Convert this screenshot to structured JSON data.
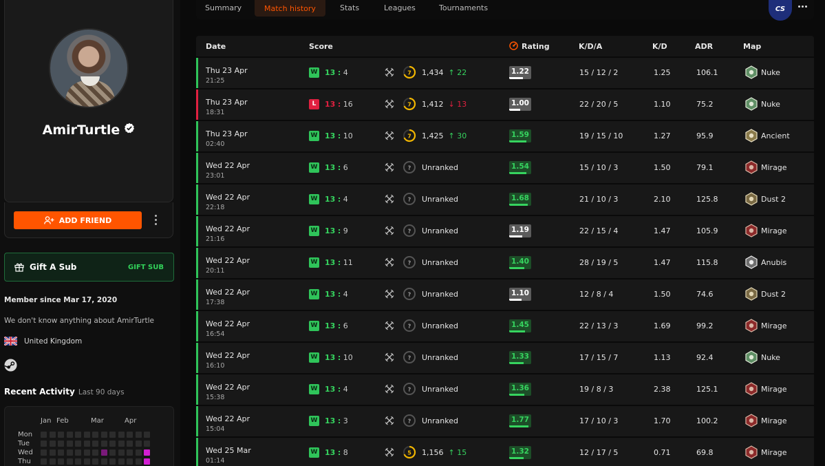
{
  "profile": {
    "username": "AmirTurtle",
    "add_friend_label": "ADD FRIEND",
    "gift_title": "Gift A Sub",
    "gift_action": "GIFT SUB",
    "member_since": "Member since Mar 17, 2020",
    "about": "We don't know anything about AmirTurtle",
    "country": "United Kingdom",
    "recent_activity_title": "Recent Activity",
    "recent_activity_range": "Last 90 days",
    "activity_months": [
      "Jan",
      "Feb",
      "Mar",
      "Apr"
    ],
    "activity_days": [
      "Mon",
      "Tue",
      "Wed",
      "Thu"
    ]
  },
  "tabs": [
    "Summary",
    "Match history",
    "Stats",
    "Leagues",
    "Tournaments"
  ],
  "active_tab": "Match history",
  "logo_text": "CS",
  "table": {
    "headers": [
      "Date",
      "Score",
      "Rating",
      "K/D/A",
      "K/D",
      "ADR",
      "Map"
    ],
    "rows": [
      {
        "date": "Thu 23 Apr",
        "time": "21:25",
        "result": "W",
        "own": "13",
        "opp": "4",
        "level": "7",
        "elo": "1,434",
        "delta": "22",
        "dir": "up",
        "rating": "1.22",
        "kda": "15 / 12 / 2",
        "kd": "1.25",
        "adr": "106.1",
        "map": "Nuke"
      },
      {
        "date": "Thu 23 Apr",
        "time": "18:31",
        "result": "L",
        "own": "13",
        "opp": "16",
        "level": "7",
        "elo": "1,412",
        "delta": "13",
        "dir": "down",
        "rating": "1.00",
        "kda": "22 / 20 / 5",
        "kd": "1.10",
        "adr": "75.2",
        "map": "Nuke"
      },
      {
        "date": "Thu 23 Apr",
        "time": "02:40",
        "result": "W",
        "own": "13",
        "opp": "10",
        "level": "7",
        "elo": "1,425",
        "delta": "30",
        "dir": "up",
        "rating": "1.59",
        "kda": "19 / 15 / 10",
        "kd": "1.27",
        "adr": "95.9",
        "map": "Ancient"
      },
      {
        "date": "Wed 22 Apr",
        "time": "23:01",
        "result": "W",
        "own": "13",
        "opp": "6",
        "level": "?",
        "elo": "Unranked",
        "delta": "",
        "dir": "",
        "rating": "1.54",
        "kda": "15 / 10 / 3",
        "kd": "1.50",
        "adr": "79.1",
        "map": "Mirage"
      },
      {
        "date": "Wed 22 Apr",
        "time": "22:18",
        "result": "W",
        "own": "13",
        "opp": "4",
        "level": "?",
        "elo": "Unranked",
        "delta": "",
        "dir": "",
        "rating": "1.68",
        "kda": "21 / 10 / 3",
        "kd": "2.10",
        "adr": "125.8",
        "map": "Dust 2"
      },
      {
        "date": "Wed 22 Apr",
        "time": "21:16",
        "result": "W",
        "own": "13",
        "opp": "9",
        "level": "?",
        "elo": "Unranked",
        "delta": "",
        "dir": "",
        "rating": "1.19",
        "kda": "22 / 15 / 4",
        "kd": "1.47",
        "adr": "105.9",
        "map": "Mirage"
      },
      {
        "date": "Wed 22 Apr",
        "time": "20:11",
        "result": "W",
        "own": "13",
        "opp": "11",
        "level": "?",
        "elo": "Unranked",
        "delta": "",
        "dir": "",
        "rating": "1.40",
        "kda": "28 / 19 / 5",
        "kd": "1.47",
        "adr": "115.8",
        "map": "Anubis"
      },
      {
        "date": "Wed 22 Apr",
        "time": "17:38",
        "result": "W",
        "own": "13",
        "opp": "4",
        "level": "?",
        "elo": "Unranked",
        "delta": "",
        "dir": "",
        "rating": "1.10",
        "kda": "12 / 8 / 4",
        "kd": "1.50",
        "adr": "74.6",
        "map": "Dust 2"
      },
      {
        "date": "Wed 22 Apr",
        "time": "16:54",
        "result": "W",
        "own": "13",
        "opp": "6",
        "level": "?",
        "elo": "Unranked",
        "delta": "",
        "dir": "",
        "rating": "1.45",
        "kda": "22 / 13 / 3",
        "kd": "1.69",
        "adr": "99.2",
        "map": "Mirage"
      },
      {
        "date": "Wed 22 Apr",
        "time": "16:10",
        "result": "W",
        "own": "13",
        "opp": "10",
        "level": "?",
        "elo": "Unranked",
        "delta": "",
        "dir": "",
        "rating": "1.33",
        "kda": "17 / 15 / 7",
        "kd": "1.13",
        "adr": "92.4",
        "map": "Nuke"
      },
      {
        "date": "Wed 22 Apr",
        "time": "15:38",
        "result": "W",
        "own": "13",
        "opp": "4",
        "level": "?",
        "elo": "Unranked",
        "delta": "",
        "dir": "",
        "rating": "1.36",
        "kda": "19 / 8 / 3",
        "kd": "2.38",
        "adr": "125.1",
        "map": "Mirage"
      },
      {
        "date": "Wed 22 Apr",
        "time": "15:04",
        "result": "W",
        "own": "13",
        "opp": "3",
        "level": "?",
        "elo": "Unranked",
        "delta": "",
        "dir": "",
        "rating": "1.77",
        "kda": "17 / 10 / 3",
        "kd": "1.70",
        "adr": "100.2",
        "map": "Mirage"
      },
      {
        "date": "Wed 25 Mar",
        "time": "01:14",
        "result": "W",
        "own": "13",
        "opp": "8",
        "level": "5",
        "elo": "1,156",
        "delta": "15",
        "dir": "up",
        "rating": "1.32",
        "kda": "12 / 17 / 5",
        "kd": "0.71",
        "adr": "69.8",
        "map": "Mirage"
      }
    ]
  },
  "colors": {
    "accent": "#ff5500",
    "win": "#36d45f",
    "loss": "#e02040",
    "level_ring": "#f2b600",
    "background": "#0a0a0a"
  }
}
